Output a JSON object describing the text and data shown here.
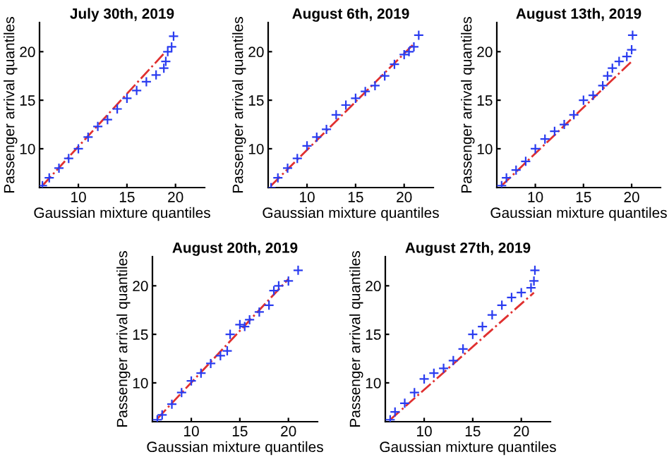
{
  "chart_data": [
    {
      "type": "scatter",
      "title": "July 30th, 2019",
      "xlabel": "Gaussian mixture quantiles",
      "ylabel": "Passenger arrival quantiles",
      "xlim": [
        6,
        23
      ],
      "ylim": [
        6,
        23
      ],
      "xticks": [
        10,
        15,
        20
      ],
      "yticks": [
        10,
        15,
        20
      ],
      "grid": false,
      "legend": false,
      "series": [
        {
          "marker": "cross",
          "color": "#2a3cf0",
          "x": [
            6.3,
            7,
            8,
            9,
            10,
            11,
            12,
            13,
            14,
            15,
            16,
            17,
            18,
            18.8,
            19,
            19.2,
            19.6,
            19.8
          ],
          "values": [
            6.2,
            7,
            8,
            9,
            10,
            11.2,
            12.3,
            13,
            14.1,
            15.2,
            16,
            16.9,
            17.6,
            18.3,
            19,
            20,
            20.5,
            21.6
          ]
        },
        {
          "type": "line",
          "line_style": "dashed",
          "color": "#e03030",
          "x": [
            6.3,
            18.8
          ],
          "values": [
            6.2,
            19.8
          ]
        }
      ]
    },
    {
      "type": "scatter",
      "title": "August 6th, 2019",
      "xlabel": "Gaussian mixture quantiles",
      "ylabel": "Passenger arrival quantiles",
      "xlim": [
        6,
        23
      ],
      "ylim": [
        6,
        23
      ],
      "xticks": [
        10,
        15,
        20
      ],
      "yticks": [
        10,
        15,
        20
      ],
      "grid": false,
      "legend": false,
      "series": [
        {
          "marker": "cross",
          "color": "#2a3cf0",
          "x": [
            6.3,
            7,
            8,
            9,
            10,
            11,
            12,
            13,
            14,
            15,
            16,
            17,
            18,
            19,
            20,
            20.5,
            21,
            21.5
          ],
          "values": [
            6,
            7,
            8,
            9,
            10.3,
            11.2,
            12,
            13.5,
            14.5,
            15.2,
            15.9,
            16.5,
            17.5,
            18.7,
            19.7,
            20,
            20.5,
            21.7
          ]
        },
        {
          "type": "line",
          "line_style": "dashed",
          "color": "#e03030",
          "x": [
            6.3,
            21
          ],
          "values": [
            6.2,
            20.8
          ]
        }
      ]
    },
    {
      "type": "scatter",
      "title": "August 13th, 2019",
      "xlabel": "Gaussian mixture quantiles",
      "ylabel": "Passenger arrival quantiles",
      "xlim": [
        6,
        23
      ],
      "ylim": [
        6,
        23
      ],
      "xticks": [
        10,
        15,
        20
      ],
      "yticks": [
        10,
        15,
        20
      ],
      "grid": false,
      "legend": false,
      "series": [
        {
          "marker": "cross",
          "color": "#2a3cf0",
          "x": [
            6.5,
            7,
            8,
            9,
            10,
            11,
            12,
            13,
            14,
            15,
            16,
            17,
            17.5,
            18,
            18.7,
            19.5,
            20,
            20.1
          ],
          "values": [
            6.2,
            7,
            7.8,
            8.7,
            10,
            11,
            11.8,
            12.5,
            13.5,
            15,
            15.5,
            16.5,
            17.5,
            18.3,
            19,
            19.5,
            20.2,
            21.7
          ]
        },
        {
          "type": "line",
          "line_style": "dashed",
          "color": "#e03030",
          "x": [
            6.5,
            20
          ],
          "values": [
            6.2,
            19
          ]
        }
      ]
    },
    {
      "type": "scatter",
      "title": "August 20th, 2019",
      "xlabel": "Gaussian mixture quantiles",
      "ylabel": "Passenger arrival quantiles",
      "xlim": [
        6,
        23
      ],
      "ylim": [
        6,
        23
      ],
      "xticks": [
        10,
        15,
        20
      ],
      "yticks": [
        10,
        15,
        20
      ],
      "grid": false,
      "legend": false,
      "series": [
        {
          "marker": "cross",
          "color": "#2a3cf0",
          "x": [
            6.5,
            7,
            8,
            9,
            10,
            11,
            12,
            13,
            13.7,
            14,
            15,
            15.5,
            16,
            17,
            18,
            18.5,
            19,
            20,
            21
          ],
          "values": [
            6.2,
            6.7,
            7.8,
            9,
            10.2,
            11,
            12,
            12.8,
            13.3,
            15,
            16,
            15.8,
            16.5,
            17.3,
            18,
            19.5,
            20,
            20.5,
            21.6
          ]
        },
        {
          "type": "line",
          "line_style": "dashed",
          "color": "#e03030",
          "x": [
            6.5,
            20
          ],
          "values": [
            6.3,
            20.7
          ]
        }
      ]
    },
    {
      "type": "scatter",
      "title": "August 27th, 2019",
      "xlabel": "Gaussian mixture quantiles",
      "ylabel": "Passenger arrival quantiles",
      "xlim": [
        6,
        23
      ],
      "ylim": [
        6,
        23
      ],
      "xticks": [
        10,
        15,
        20
      ],
      "yticks": [
        10,
        15,
        20
      ],
      "grid": false,
      "legend": false,
      "series": [
        {
          "marker": "cross",
          "color": "#2a3cf0",
          "x": [
            6.5,
            7,
            8,
            9,
            10,
            11,
            12,
            13,
            14,
            15,
            16,
            17,
            18,
            19,
            20,
            21,
            21.3,
            21.4
          ],
          "values": [
            6.2,
            7,
            7.9,
            9,
            10.4,
            11,
            11.5,
            12.3,
            13.5,
            15,
            15.8,
            17,
            18,
            18.8,
            19.3,
            19.8,
            20.5,
            21.6
          ]
        },
        {
          "type": "line",
          "line_style": "dashed",
          "color": "#e03030",
          "x": [
            6.5,
            21.3
          ],
          "values": [
            6.2,
            19.3
          ]
        }
      ]
    }
  ]
}
